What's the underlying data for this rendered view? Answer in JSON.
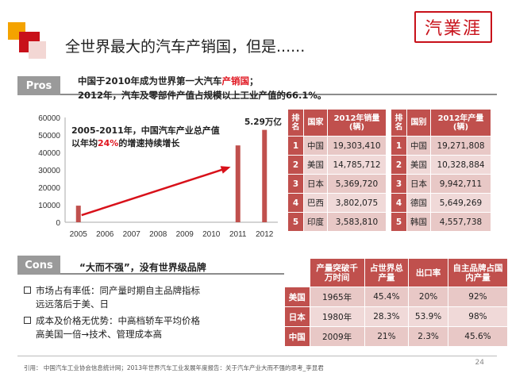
{
  "title": "全世界最大的汽车产销国，但是......",
  "logo_text": "汽業涯",
  "pros": {
    "tag": "Pros",
    "line1_prefix": "中国于2010年成为世界第一大汽车",
    "line1_highlight": "产销国",
    "line1_suffix": "；",
    "line2": "2012年，汽车及零部件产值占规模以上工业产值的66.1%。"
  },
  "chart_data": {
    "type": "bar",
    "categories": [
      "2005",
      "2006",
      "2007",
      "2008",
      "2009",
      "2010",
      "2011",
      "2012"
    ],
    "values": [
      9500,
      null,
      null,
      null,
      null,
      null,
      44000,
      52900
    ],
    "ylim": [
      0,
      60000
    ],
    "yticks": [
      "0",
      "10000",
      "20000",
      "30000",
      "40000",
      "50000",
      "60000"
    ],
    "annotation_prefix": "2005-2011年，中国汽车产业总产值以年均",
    "annotation_highlight": "24%",
    "annotation_suffix": "的增速持续增长",
    "bar_label": "5.29万亿",
    "colors": {
      "bar": "#c0504d",
      "arrow": "#d8111a"
    }
  },
  "sales_table": {
    "left": {
      "headers": [
        "排名",
        "国家",
        "2012年销量(辆)"
      ],
      "rows": [
        [
          "1",
          "中国",
          "19,303,410"
        ],
        [
          "2",
          "美国",
          "14,785,712"
        ],
        [
          "3",
          "日本",
          "5,369,720"
        ],
        [
          "4",
          "巴西",
          "3,802,075"
        ],
        [
          "5",
          "印度",
          "3,583,810"
        ]
      ]
    },
    "right": {
      "headers": [
        "排名",
        "国别",
        "2012年产量(辆)"
      ],
      "rows": [
        [
          "1",
          "中国",
          "19,271,808"
        ],
        [
          "2",
          "美国",
          "10,328,884"
        ],
        [
          "3",
          "日本",
          "9,942,711"
        ],
        [
          "4",
          "德国",
          "5,649,269"
        ],
        [
          "5",
          "韩国",
          "4,557,738"
        ]
      ]
    }
  },
  "cons": {
    "tag": "Cons",
    "heading": "“大而不强”，没有世界级品牌",
    "bullet1_line1": "市场占有率低：同产量时期自主品牌指标",
    "bullet1_line2": "远远落后于美、日",
    "bullet2_line1": "成本及价格无优势：中高档轿车平均价格",
    "bullet2_line2": "高美国一倍→技术、管理成本高",
    "table": {
      "headers": [
        "",
        "产量突破千万时间",
        "占世界总产量",
        "出口率",
        "自主品牌占国内产量"
      ],
      "rows": [
        [
          "美国",
          "1965年",
          "45.4%",
          "20%",
          "92%"
        ],
        [
          "日本",
          "1980年",
          "28.3%",
          "53.9%",
          "98%"
        ],
        [
          "中国",
          "2009年",
          "21%",
          "2.3%",
          "45.6%"
        ]
      ]
    }
  },
  "footer": "引用：  中国汽车工业协会信息统计网；2013年世界汽车工业发展年度报告：关于汽车产业大而不强的思考_李显君",
  "page_number": "24"
}
